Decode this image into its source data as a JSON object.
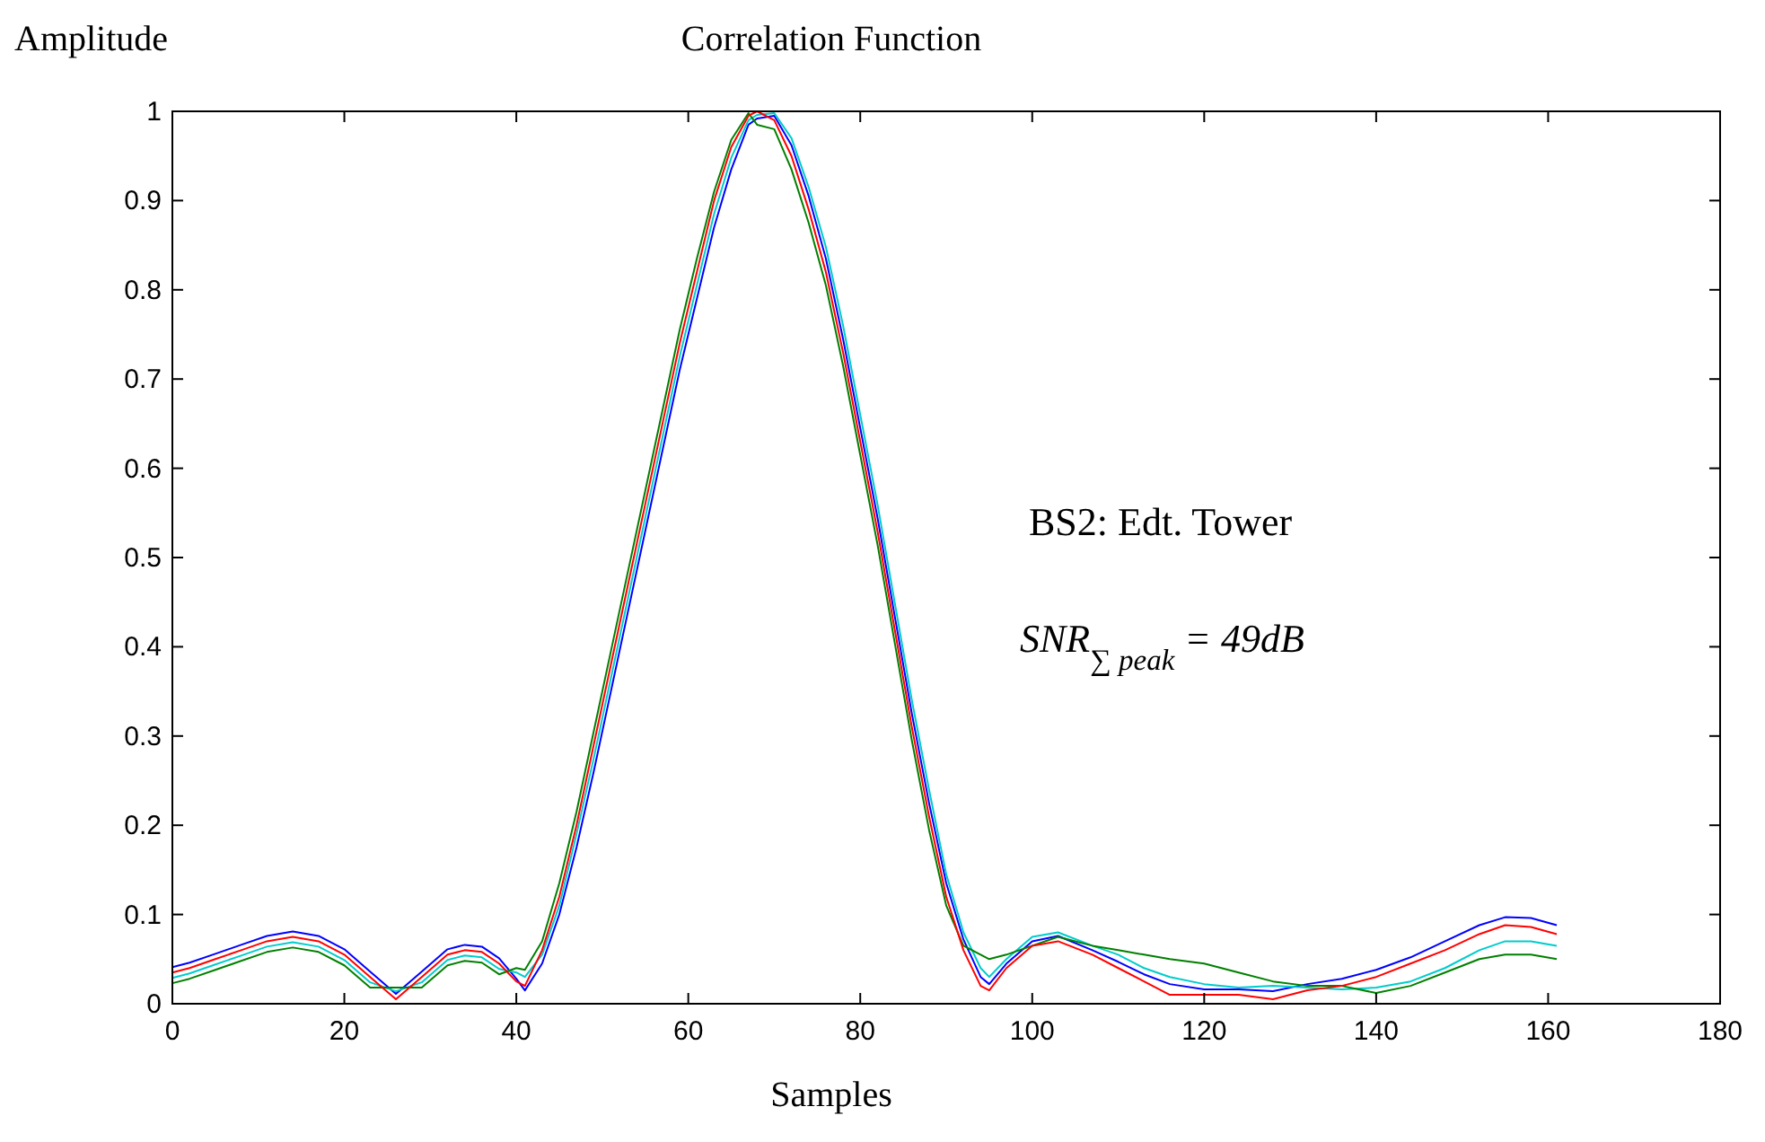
{
  "chart_data": {
    "type": "line",
    "title": "Correlation Function",
    "xlabel": "Samples",
    "ylabel": "Amplitude",
    "x": [
      0,
      2,
      5,
      8,
      11,
      14,
      17,
      20,
      23,
      26,
      29,
      32,
      34,
      36,
      38,
      40,
      41,
      43,
      45,
      47,
      49,
      51,
      53,
      55,
      57,
      59,
      61,
      63,
      65,
      67,
      68,
      70,
      72,
      74,
      76,
      78,
      80,
      82,
      84,
      86,
      88,
      90,
      92,
      94,
      95,
      97,
      100,
      103,
      107,
      110,
      113,
      116,
      120,
      124,
      128,
      132,
      136,
      140,
      144,
      148,
      152,
      155,
      158,
      161
    ],
    "series": [
      {
        "color": "#0000ff",
        "values": [
          0.041,
          0.046,
          0.056,
          0.066,
          0.076,
          0.081,
          0.076,
          0.061,
          0.036,
          0.011,
          0.036,
          0.061,
          0.066,
          0.064,
          0.051,
          0.028,
          0.015,
          0.045,
          0.1,
          0.175,
          0.26,
          0.35,
          0.44,
          0.53,
          0.62,
          0.71,
          0.79,
          0.87,
          0.935,
          0.985,
          0.992,
          0.995,
          0.962,
          0.905,
          0.835,
          0.745,
          0.645,
          0.545,
          0.435,
          0.325,
          0.225,
          0.135,
          0.072,
          0.03,
          0.022,
          0.045,
          0.07,
          0.076,
          0.06,
          0.047,
          0.033,
          0.022,
          0.016,
          0.016,
          0.014,
          0.022,
          0.028,
          0.038,
          0.052,
          0.07,
          0.088,
          0.097,
          0.096,
          0.088
        ]
      },
      {
        "color": "#00cccc",
        "values": [
          0.029,
          0.034,
          0.044,
          0.054,
          0.064,
          0.069,
          0.064,
          0.049,
          0.024,
          0.014,
          0.024,
          0.049,
          0.054,
          0.052,
          0.039,
          0.035,
          0.03,
          0.055,
          0.11,
          0.19,
          0.275,
          0.365,
          0.455,
          0.545,
          0.635,
          0.725,
          0.805,
          0.885,
          0.948,
          0.99,
          0.996,
          0.998,
          0.97,
          0.915,
          0.848,
          0.76,
          0.66,
          0.56,
          0.45,
          0.34,
          0.24,
          0.145,
          0.08,
          0.04,
          0.03,
          0.05,
          0.075,
          0.08,
          0.065,
          0.055,
          0.04,
          0.03,
          0.022,
          0.018,
          0.02,
          0.018,
          0.016,
          0.018,
          0.025,
          0.04,
          0.06,
          0.07,
          0.07,
          0.065
        ]
      },
      {
        "color": "#008000",
        "values": [
          0.023,
          0.028,
          0.038,
          0.048,
          0.058,
          0.063,
          0.058,
          0.043,
          0.018,
          0.018,
          0.018,
          0.043,
          0.048,
          0.046,
          0.033,
          0.04,
          0.038,
          0.07,
          0.135,
          0.215,
          0.305,
          0.395,
          0.485,
          0.575,
          0.665,
          0.755,
          0.835,
          0.91,
          0.968,
          0.998,
          0.985,
          0.98,
          0.935,
          0.875,
          0.805,
          0.715,
          0.615,
          0.515,
          0.405,
          0.295,
          0.195,
          0.11,
          0.065,
          0.055,
          0.05,
          0.055,
          0.065,
          0.075,
          0.065,
          0.06,
          0.055,
          0.05,
          0.045,
          0.035,
          0.025,
          0.02,
          0.02,
          0.012,
          0.02,
          0.035,
          0.05,
          0.055,
          0.055,
          0.05
        ]
      },
      {
        "color": "#ff0000",
        "values": [
          0.035,
          0.04,
          0.05,
          0.06,
          0.07,
          0.075,
          0.07,
          0.055,
          0.03,
          0.005,
          0.03,
          0.055,
          0.06,
          0.058,
          0.045,
          0.025,
          0.02,
          0.06,
          0.12,
          0.2,
          0.29,
          0.38,
          0.47,
          0.56,
          0.65,
          0.74,
          0.82,
          0.9,
          0.96,
          0.995,
          1,
          0.99,
          0.95,
          0.89,
          0.82,
          0.73,
          0.63,
          0.53,
          0.42,
          0.31,
          0.21,
          0.12,
          0.06,
          0.02,
          0.015,
          0.04,
          0.065,
          0.07,
          0.055,
          0.04,
          0.025,
          0.01,
          0.01,
          0.01,
          0.005,
          0.015,
          0.02,
          0.03,
          0.045,
          0.06,
          0.078,
          0.088,
          0.086,
          0.078
        ]
      }
    ],
    "xlim": [
      0,
      180
    ],
    "xticks": [
      0,
      20,
      40,
      60,
      80,
      100,
      120,
      140,
      160,
      180
    ],
    "ylim": [
      0,
      1
    ],
    "yticks": [
      0,
      0.1,
      0.2,
      0.3,
      0.4,
      0.5,
      0.6,
      0.7,
      0.8,
      0.9,
      1
    ],
    "marker": "none",
    "line_style": "solid",
    "annotations": [
      "BS2: Edt. Tower",
      "SNR$_{∑ peak}$ = 49dB"
    ]
  }
}
